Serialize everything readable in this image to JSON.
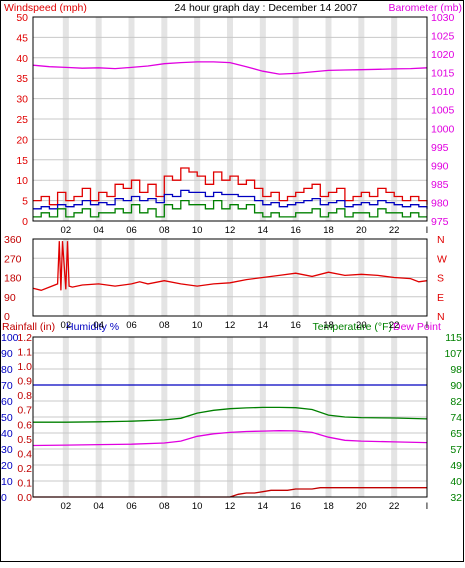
{
  "header": {
    "title": "24 hour graph day : December 14 2007",
    "left_label": "Windspeed (mph)",
    "right_label": "Barometer (mb)"
  },
  "colors": {
    "red": "#e00000",
    "blue": "#0000c0",
    "green": "#008000",
    "magenta": "#e000e0",
    "darkred": "#c00000",
    "grid": "#c8c8c8",
    "border": "#000000"
  },
  "x_ticks": [
    "02",
    "04",
    "06",
    "08",
    "10",
    "12",
    "14",
    "16",
    "18",
    "20",
    "22",
    "I"
  ],
  "chart_data": [
    {
      "type": "line",
      "panel": "wind-barometer",
      "title": "24 hour graph day : December 14 2007",
      "xlabel": "",
      "ylabel": "Windspeed (mph)",
      "ylabel_right": "Barometer (mb)",
      "xlim": [
        0,
        24
      ],
      "ylim": [
        0,
        50
      ],
      "ylim_right": [
        975,
        1030
      ],
      "yticks": [
        "0",
        "5",
        "10",
        "15",
        "20",
        "25",
        "30",
        "35",
        "40",
        "45",
        "50"
      ],
      "yticks_right": [
        "975",
        "980",
        "985",
        "990",
        "995",
        "1000",
        "1005",
        "1010",
        "1015",
        "1020",
        "1025",
        "1030"
      ],
      "grid": true,
      "series": [
        {
          "name": "",
          "color": "red",
          "axis": "left",
          "x": [
            0,
            0.5,
            1,
            1.5,
            2,
            2.5,
            3,
            3.5,
            4,
            4.5,
            5,
            5.5,
            6,
            6.5,
            7,
            7.5,
            8,
            8.5,
            9,
            9.5,
            10,
            10.5,
            11,
            11.5,
            12,
            12.5,
            13,
            13.5,
            14,
            14.5,
            15,
            15.5,
            16,
            16.5,
            17,
            17.5,
            18,
            18.5,
            19,
            19.5,
            20,
            20.5,
            21,
            21.5,
            22,
            22.5,
            23,
            23.5,
            24
          ],
          "y": [
            5,
            6,
            4,
            7,
            5,
            6,
            8,
            5,
            7,
            6,
            9,
            8,
            10,
            7,
            9,
            6,
            11,
            10,
            13,
            12,
            11,
            9,
            12,
            10,
            11,
            9,
            10,
            8,
            6,
            7,
            5,
            6,
            7,
            8,
            9,
            6,
            7,
            8,
            5,
            6,
            7,
            6,
            8,
            7,
            6,
            5,
            6,
            5,
            4
          ]
        },
        {
          "name": "",
          "color": "blue",
          "axis": "left",
          "x": [
            0,
            0.5,
            1,
            1.5,
            2,
            2.5,
            3,
            3.5,
            4,
            4.5,
            5,
            5.5,
            6,
            6.5,
            7,
            7.5,
            8,
            8.5,
            9,
            9.5,
            10,
            10.5,
            11,
            11.5,
            12,
            12.5,
            13,
            13.5,
            14,
            14.5,
            15,
            15.5,
            16,
            16.5,
            17,
            17.5,
            18,
            18.5,
            19,
            19.5,
            20,
            20.5,
            21,
            21.5,
            22,
            22.5,
            23,
            23.5,
            24
          ],
          "y": [
            3,
            3.5,
            3,
            4,
            3.5,
            4,
            5,
            4,
            4.5,
            4,
            5.5,
            5,
            6,
            5,
            5.5,
            4.5,
            6.5,
            6,
            7.5,
            7,
            7,
            6,
            7,
            6.5,
            6.5,
            6,
            6,
            5,
            4,
            4.5,
            3.5,
            4,
            4.5,
            5,
            5.5,
            4,
            4.5,
            5,
            3.5,
            4,
            4.5,
            4,
            5,
            4.5,
            4,
            3.5,
            4,
            3.5,
            3
          ]
        },
        {
          "name": "",
          "color": "green",
          "axis": "left",
          "x": [
            0,
            0.5,
            1,
            1.5,
            2,
            2.5,
            3,
            3.5,
            4,
            4.5,
            5,
            5.5,
            6,
            6.5,
            7,
            7.5,
            8,
            8.5,
            9,
            9.5,
            10,
            10.5,
            11,
            11.5,
            12,
            12.5,
            13,
            13.5,
            14,
            14.5,
            15,
            15.5,
            16,
            16.5,
            17,
            17.5,
            18,
            18.5,
            19,
            19.5,
            20,
            20.5,
            21,
            21.5,
            22,
            22.5,
            23,
            23.5,
            24
          ],
          "y": [
            1,
            2,
            1,
            3,
            1,
            2,
            3,
            1,
            2,
            2,
            3,
            2,
            4,
            2,
            3,
            1,
            4,
            3,
            5,
            4,
            4,
            3,
            5,
            3,
            4,
            3,
            4,
            2,
            1,
            2,
            1,
            1,
            2,
            2,
            3,
            1,
            2,
            3,
            1,
            2,
            2,
            1,
            3,
            2,
            2,
            1,
            2,
            1,
            1
          ]
        },
        {
          "name": "",
          "color": "magenta",
          "axis": "right",
          "x": [
            0,
            1,
            2,
            3,
            4,
            5,
            6,
            7,
            8,
            9,
            10,
            11,
            12,
            13,
            14,
            15,
            16,
            17,
            18,
            19,
            20,
            21,
            22,
            23,
            24
          ],
          "y": [
            1017,
            1016.6,
            1016.4,
            1016.2,
            1016.3,
            1016.1,
            1016.4,
            1016.8,
            1017.4,
            1017.7,
            1017.9,
            1017.9,
            1017.7,
            1016.6,
            1015.4,
            1014.6,
            1014.8,
            1015.2,
            1015.6,
            1015.7,
            1015.8,
            1015.9,
            1016,
            1016.1,
            1016.3
          ]
        }
      ]
    },
    {
      "type": "line",
      "panel": "wind-direction",
      "xlabel": "",
      "ylabel": "",
      "xlim": [
        0,
        24
      ],
      "ylim": [
        0,
        360
      ],
      "yticks": [
        "0",
        "90",
        "180",
        "270",
        "360"
      ],
      "right_labels": [
        "N",
        "W",
        "S",
        "E",
        "N"
      ],
      "grid": true,
      "series": [
        {
          "name": "",
          "color": "red",
          "x": [
            0,
            0.5,
            1,
            1.5,
            1.6,
            1.7,
            1.8,
            2,
            2.1,
            2.2,
            2.4,
            3,
            4,
            5,
            6,
            6.5,
            7,
            8,
            9,
            10,
            11,
            12,
            13,
            14,
            15,
            16,
            17,
            18,
            19,
            20,
            21,
            22,
            23,
            23.5,
            24
          ],
          "y": [
            130,
            120,
            135,
            150,
            350,
            120,
            350,
            125,
            350,
            140,
            135,
            145,
            150,
            140,
            150,
            160,
            150,
            165,
            150,
            140,
            150,
            155,
            170,
            180,
            190,
            200,
            185,
            205,
            190,
            195,
            190,
            180,
            175,
            160,
            165
          ]
        }
      ]
    },
    {
      "type": "line",
      "panel": "rain-humidity-temp",
      "xlabel": "",
      "ylabel": "Rainfall (in)",
      "ylabel_2": "Humidity %",
      "ylabel_right": "Temperature (°F)",
      "ylabel_right_2": "Dew Point",
      "xlim": [
        0,
        24
      ],
      "rain_ylim": [
        0,
        1.2
      ],
      "humidity_ylim": [
        0,
        100
      ],
      "temp_ylim": [
        32,
        115
      ],
      "yticks_rain": [
        "0.0",
        "0.1",
        "0.2",
        "0.4",
        "0.5",
        "0.6",
        "0.7",
        "0.8",
        "0.9",
        "1.0",
        "1.1",
        "1.2"
      ],
      "yticks_humidity": [
        "0",
        "10",
        "20",
        "30",
        "40",
        "50",
        "60",
        "70",
        "80",
        "90",
        "100"
      ],
      "yticks_temp": [
        "32",
        "40",
        "49",
        "57",
        "65",
        "74",
        "82",
        "90",
        "98",
        "107",
        "115"
      ],
      "grid": true,
      "series": [
        {
          "name": "Humidity %",
          "color": "blue",
          "axis": "humidity",
          "x": [
            0,
            24
          ],
          "y": [
            70,
            70
          ]
        },
        {
          "name": "Temperature (°F)",
          "color": "green",
          "axis": "temp",
          "x": [
            0,
            2,
            4,
            6,
            8,
            9,
            10,
            11,
            12,
            13,
            14,
            15,
            16,
            17,
            18,
            19,
            20,
            22,
            24
          ],
          "y": [
            70.8,
            70.8,
            71,
            71.3,
            72,
            72.8,
            75.5,
            77,
            77.8,
            78.2,
            78.5,
            78.5,
            78.3,
            77.4,
            74.5,
            73.5,
            73.2,
            73,
            72.5
          ]
        },
        {
          "name": "Dew Point",
          "color": "magenta",
          "axis": "temp",
          "x": [
            0,
            2,
            4,
            6,
            8,
            9,
            10,
            11,
            12,
            13,
            14,
            15,
            16,
            17,
            18,
            19,
            20,
            22,
            24
          ],
          "y": [
            58.7,
            58.9,
            59.2,
            59.4,
            60,
            61,
            63.5,
            64.8,
            65.5,
            66,
            66.2,
            66.4,
            66.3,
            65.5,
            63,
            61.4,
            61,
            60.6,
            60.2
          ]
        },
        {
          "name": "Rainfall (in)",
          "color": "darkred",
          "axis": "rain",
          "x": [
            0,
            10.5,
            11,
            11.5,
            12,
            12.5,
            13,
            13.5,
            14,
            14.5,
            15,
            15.5,
            16,
            16.5,
            17,
            17.5,
            18,
            19,
            20,
            21,
            22,
            23,
            24
          ],
          "y": [
            0,
            0,
            0,
            0,
            0,
            0.02,
            0.03,
            0.03,
            0.04,
            0.05,
            0.05,
            0.05,
            0.06,
            0.06,
            0.06,
            0.07,
            0.07,
            0.07,
            0.07,
            0.07,
            0.07,
            0.07,
            0.07
          ]
        }
      ]
    }
  ]
}
